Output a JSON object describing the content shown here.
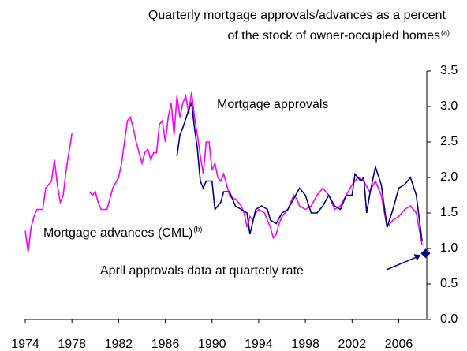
{
  "chart_data": {
    "type": "line",
    "title": "Quarterly mortgage approvals/advances as a percent",
    "title_line2": "of the stock of owner-occupied homes",
    "title_note": "(a)",
    "xlim": [
      1974,
      2008.4
    ],
    "xticks": [
      1974,
      1978,
      1982,
      1986,
      1990,
      1994,
      1998,
      2002,
      2006
    ],
    "ylim": [
      0,
      3.5
    ],
    "yticks": [
      {
        "value": 0,
        "label": "0.0"
      },
      {
        "value": 0.5,
        "label": "0.5"
      },
      {
        "value": 1,
        "label": "1.0"
      },
      {
        "value": 1.5,
        "label": "1.5"
      },
      {
        "value": 2,
        "label": "2.0"
      },
      {
        "value": 2.5,
        "label": "2.5"
      },
      {
        "value": 3,
        "label": "3.0"
      },
      {
        "value": 3.5,
        "label": "3.5"
      }
    ],
    "series": [
      {
        "name": "Mortgage advances (CML)",
        "note": "(b)",
        "color": "#ff00ff",
        "x": [
          1974,
          1974.25,
          1974.5,
          1974.75,
          1975,
          1975.5,
          1975.75,
          1976,
          1976.25,
          1976.5,
          1976.75,
          1977,
          1977.25,
          1977.5,
          1978,
          1979,
          1979.5,
          1979.75,
          1980,
          1980.25,
          1980.5,
          1981,
          1981.25,
          1981.5,
          1982,
          1982.25,
          1982.5,
          1982.75,
          1983,
          1983.25,
          1983.5,
          1983.75,
          1984,
          1984.25,
          1984.5,
          1984.75,
          1985,
          1985.25,
          1985.5,
          1985.75,
          1986,
          1986.25,
          1986.5,
          1986.75,
          1987,
          1987.25,
          1987.5,
          1987.75,
          1988,
          1988.25,
          1988.5,
          1988.75,
          1989,
          1989.25,
          1989.5,
          1989.75,
          1990,
          1990.25,
          1990.5,
          1990.75,
          1991,
          1991.5,
          1991.75,
          1992,
          1992.5,
          1992.75,
          1993,
          1993.25,
          1993.5,
          1993.75,
          1994,
          1994.5,
          1995,
          1995.25,
          1995.5,
          1995.75,
          1996,
          1996.5,
          1997,
          1997.25,
          1997.5,
          1998,
          1998.5,
          1999,
          1999.5,
          2000,
          2000.5,
          2001,
          2001.5,
          2002,
          2002.5,
          2003,
          2003.5,
          2004,
          2004.5,
          2005,
          2005.5,
          2006,
          2006.5,
          2007,
          2007.5,
          2008
        ],
        "values": [
          1.25,
          0.95,
          1.3,
          1.45,
          1.55,
          1.55,
          1.85,
          1.9,
          1.95,
          2.25,
          1.9,
          1.65,
          1.75,
          2.1,
          2.62,
          null,
          1.8,
          1.75,
          1.8,
          1.65,
          1.55,
          1.55,
          1.7,
          1.85,
          2.0,
          2.2,
          2.5,
          2.8,
          2.85,
          2.7,
          2.5,
          2.35,
          2.2,
          2.35,
          2.4,
          2.25,
          2.35,
          2.35,
          2.75,
          2.8,
          2.5,
          2.85,
          3.05,
          2.6,
          3.15,
          2.85,
          3.05,
          3.15,
          2.9,
          3.2,
          2.85,
          2.6,
          2.3,
          2.05,
          2.5,
          2.5,
          2.1,
          2.2,
          2.0,
          1.95,
          2.05,
          1.75,
          1.7,
          1.7,
          1.6,
          1.5,
          1.3,
          1.45,
          1.4,
          1.5,
          1.55,
          1.5,
          1.3,
          1.15,
          1.2,
          1.35,
          1.45,
          1.55,
          1.75,
          1.7,
          1.6,
          1.55,
          1.6,
          1.75,
          1.85,
          1.75,
          1.55,
          1.6,
          1.75,
          1.9,
          2.0,
          1.95,
          1.8,
          1.95,
          1.75,
          1.3,
          1.4,
          1.45,
          1.55,
          1.6,
          1.5,
          1.05
        ]
      },
      {
        "name": "Mortgage approvals",
        "color": "#000080",
        "x": [
          1987,
          1987.25,
          1987.5,
          1988,
          1988.25,
          1988.5,
          1988.75,
          1989,
          1989.25,
          1989.5,
          1990,
          1990.25,
          1990.75,
          1991,
          1991.5,
          1992,
          1992.5,
          1993,
          1993.25,
          1993.75,
          1994.25,
          1994.75,
          1995,
          1995.5,
          1996,
          1996.5,
          1997,
          1997.5,
          1998,
          1998.5,
          1999,
          1999.5,
          2000,
          2000.5,
          2001,
          2001.5,
          2002,
          2002.25,
          2002.75,
          2003,
          2003.25,
          2003.5,
          2004,
          2004.5,
          2005,
          2005.5,
          2006,
          2006.5,
          2007,
          2007.5,
          2008
        ],
        "values": [
          2.3,
          2.6,
          2.7,
          2.95,
          3.05,
          2.7,
          2.4,
          1.95,
          1.85,
          1.95,
          1.95,
          1.55,
          1.65,
          1.8,
          1.8,
          1.6,
          1.55,
          1.5,
          1.2,
          1.55,
          1.6,
          1.55,
          1.4,
          1.35,
          1.5,
          1.55,
          1.7,
          1.85,
          1.75,
          1.5,
          1.5,
          1.6,
          1.75,
          1.6,
          1.55,
          1.75,
          1.75,
          2.05,
          1.95,
          2.0,
          1.5,
          1.75,
          2.15,
          1.9,
          1.3,
          1.55,
          1.85,
          1.9,
          2.0,
          1.75,
          1.1
        ]
      }
    ],
    "point": {
      "label": "April approvals data at quarterly rate",
      "x": 2008.3,
      "value": 0.93,
      "color": "#000080"
    }
  }
}
